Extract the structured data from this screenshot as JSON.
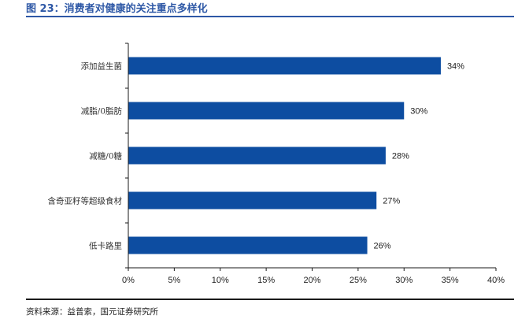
{
  "figure": {
    "title": "图 23：消费者对健康的关注重点多样化",
    "source": "资料来源：益普索，国元证券研究所"
  },
  "colors": {
    "bar": "#0D4DA1",
    "title": "#2E58A6",
    "axis": "#1a1a1a"
  },
  "chart_data": {
    "type": "bar",
    "orientation": "horizontal",
    "categories": [
      "添加益生菌",
      "减脂/0脂肪",
      "减糖/0糖",
      "含奇亚籽等超级食材",
      "低卡路里"
    ],
    "values": [
      34,
      30,
      28,
      27,
      26
    ],
    "value_labels": [
      "34%",
      "30%",
      "28%",
      "27%",
      "26%"
    ],
    "xlim": [
      0,
      40
    ],
    "xticks": [
      0,
      5,
      10,
      15,
      20,
      25,
      30,
      35,
      40
    ],
    "xtick_labels": [
      "0%",
      "5%",
      "10%",
      "15%",
      "20%",
      "25%",
      "30%",
      "35%",
      "40%"
    ],
    "grid": false,
    "legend": "none"
  }
}
